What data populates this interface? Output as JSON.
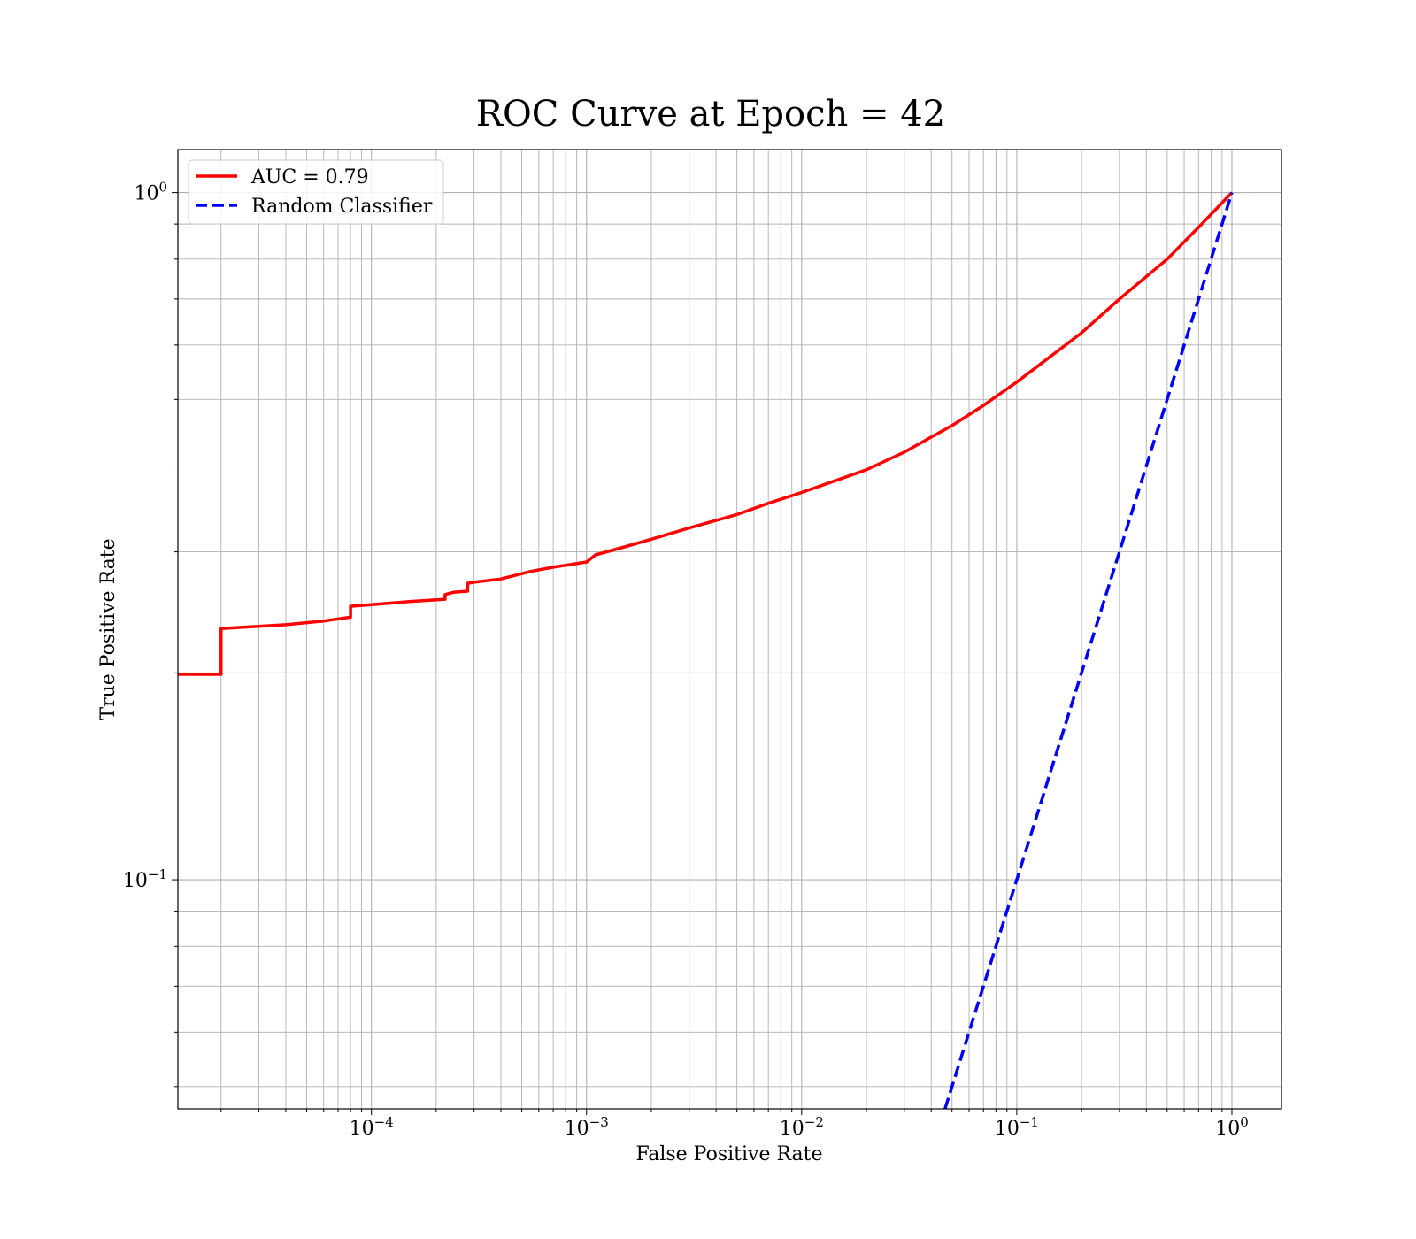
{
  "chart_data": {
    "type": "line",
    "title": "ROC Curve at Epoch = 42",
    "xlabel": "False Positive Rate",
    "ylabel": "True Positive Rate",
    "xscale": "log",
    "yscale": "log",
    "xlim": [
      1.26e-05,
      1.7
    ],
    "ylim": [
      0.0464,
      1.155
    ],
    "grid": "on (major and minor)",
    "legend_placement": "top-left",
    "x_ticks": [
      {
        "value": 0.0001,
        "base": "10",
        "exp": "−4"
      },
      {
        "value": 0.001,
        "base": "10",
        "exp": "−3"
      },
      {
        "value": 0.01,
        "base": "10",
        "exp": "−2"
      },
      {
        "value": 0.1,
        "base": "10",
        "exp": "−1"
      },
      {
        "value": 1,
        "base": "10",
        "exp": "0"
      }
    ],
    "y_ticks": [
      {
        "value": 0.1,
        "base": "10",
        "exp": "−1"
      },
      {
        "value": 1,
        "base": "10",
        "exp": "0"
      }
    ],
    "series": [
      {
        "name": "AUC = 0.79",
        "color": "#ff0000",
        "style": "solid",
        "x": [
          1.26e-05,
          2e-05,
          2e-05,
          4e-05,
          6e-05,
          8e-05,
          8e-05,
          0.00015,
          0.00022,
          0.00022,
          0.00024,
          0.00028,
          0.00028,
          0.0003,
          0.0004,
          0.00055,
          0.0007,
          0.001,
          0.0011,
          0.0015,
          0.002,
          0.003,
          0.005,
          0.007,
          0.01,
          0.02,
          0.03,
          0.05,
          0.07,
          0.1,
          0.2,
          0.3,
          0.5,
          0.7,
          1.0
        ],
        "y": [
          0.199,
          0.199,
          0.232,
          0.235,
          0.238,
          0.241,
          0.25,
          0.254,
          0.256,
          0.26,
          0.262,
          0.263,
          0.27,
          0.271,
          0.274,
          0.281,
          0.285,
          0.29,
          0.297,
          0.305,
          0.313,
          0.325,
          0.34,
          0.353,
          0.366,
          0.395,
          0.419,
          0.458,
          0.49,
          0.53,
          0.625,
          0.7,
          0.8,
          0.89,
          1.0
        ]
      },
      {
        "name": "Random Classifier",
        "color": "#0000ff",
        "style": "dashed",
        "x": [
          0.0464,
          1.0
        ],
        "y": [
          0.0464,
          1.0
        ]
      }
    ]
  }
}
